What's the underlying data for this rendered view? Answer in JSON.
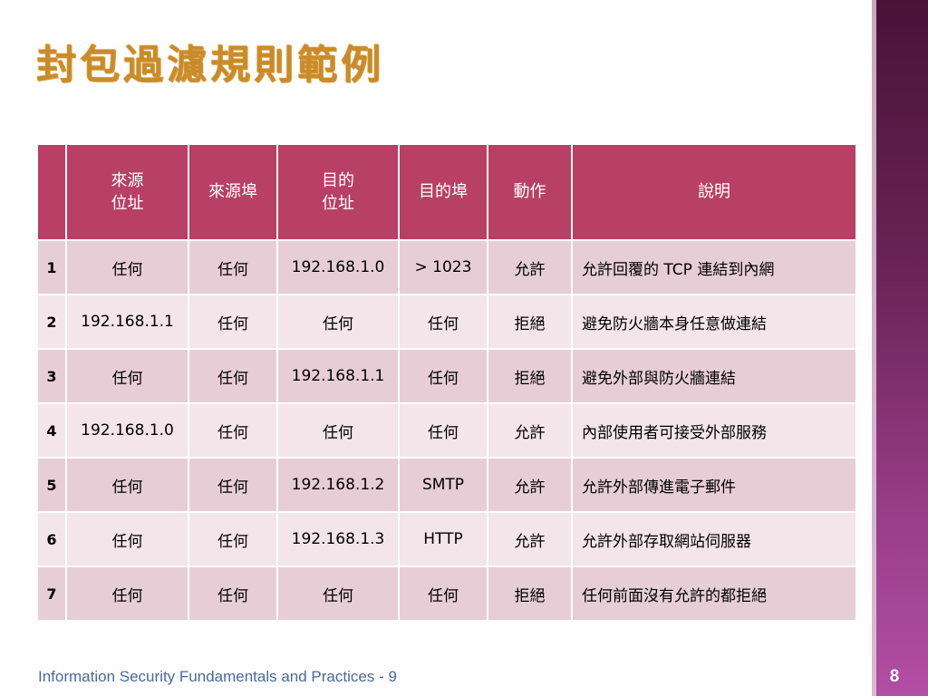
{
  "slide": {
    "title": "封包過濾規則範例",
    "footer": "Information Security Fundamentals and Practices - 9",
    "page_number": "8"
  },
  "table": {
    "headers": [
      "",
      "來源\n位址",
      "來源埠",
      "目的\n位址",
      "目的埠",
      "動作",
      "說明"
    ],
    "rows": [
      [
        "1",
        "任何",
        "任何",
        "192.168.1.0",
        "> 1023",
        "允許",
        "允許回覆的 TCP 連結到內網"
      ],
      [
        "2",
        "192.168.1.1",
        "任何",
        "任何",
        "任何",
        "拒絕",
        "避免防火牆本身任意做連結"
      ],
      [
        "3",
        "任何",
        "任何",
        "192.168.1.1",
        "任何",
        "拒絕",
        "避免外部與防火牆連結"
      ],
      [
        "4",
        "192.168.1.0",
        "任何",
        "任何",
        "任何",
        "允許",
        "內部使用者可接受外部服務"
      ],
      [
        "5",
        "任何",
        "任何",
        "192.168.1.2",
        "SMTP",
        "允許",
        "允許外部傳進電子郵件"
      ],
      [
        "6",
        "任何",
        "任何",
        "192.168.1.3",
        "HTTP",
        "允許",
        "允許外部存取網站伺服器"
      ],
      [
        "7",
        "任何",
        "任何",
        "任何",
        "任何",
        "拒絕",
        "任何前面沒有允許的都拒絕"
      ]
    ]
  },
  "colors": {
    "header_bg": "#b83f66",
    "row_odd_bg": "#e7ced6",
    "row_even_bg": "#f3e5ea",
    "title_gold": "#efc56b",
    "side_bar": "#6b2458",
    "footer_text": "#4a6aa0"
  }
}
